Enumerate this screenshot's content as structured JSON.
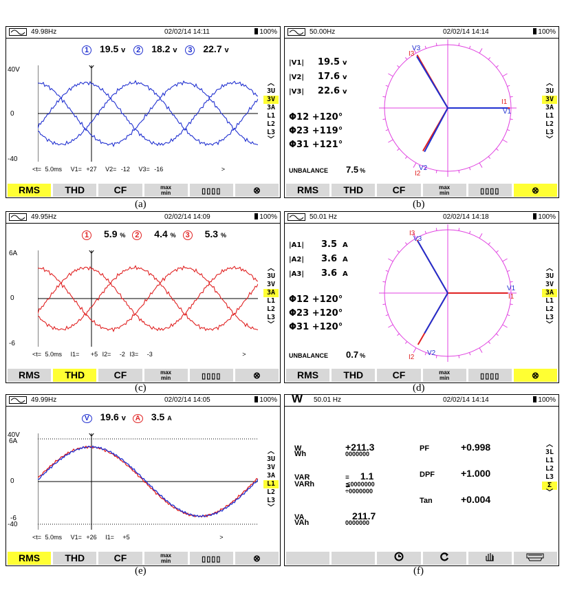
{
  "panels": {
    "a": {
      "freq": "49.98Hz",
      "datetime": "02/02/14  14:11",
      "battery": "100%",
      "readout": [
        {
          "n": "1",
          "val": "19.5",
          "unit": "v"
        },
        {
          "n": "2",
          "val": "18.2",
          "unit": "v"
        },
        {
          "n": "3",
          "val": "22.7",
          "unit": "v"
        }
      ],
      "ytop": "40V",
      "ymid": "0",
      "ybot": "-40",
      "cursor": {
        "t": "<t=",
        "time": "5.0ms",
        "c1": "V1=",
        "v1": "+27",
        "c2": "V2=",
        "v2": "-12",
        "c3": "V3=",
        "v3": "-16",
        "end": ">"
      },
      "menu": [
        "3U",
        "3V",
        "3A",
        "L1",
        "L2",
        "L3"
      ],
      "menu_selected": "3V",
      "caption": "(a)"
    },
    "b": {
      "freq": "50.00Hz",
      "datetime": "02/02/14  14:14",
      "battery": "100%",
      "mags": [
        {
          "label": "|V1|",
          "val": "19.5",
          "unit": "v"
        },
        {
          "label": "|V2|",
          "val": "17.6",
          "unit": "v"
        },
        {
          "label": "|V3|",
          "val": "22.6",
          "unit": "v"
        }
      ],
      "phases": [
        {
          "label": "Φ12",
          "val": "+120°"
        },
        {
          "label": "Φ23",
          "val": "+119°"
        },
        {
          "label": "Φ31",
          "val": "+121°"
        }
      ],
      "unbalance_label": "UNBALANCE",
      "unbalance_val": "7.5",
      "unbalance_unit": "%",
      "vec_labels": {
        "v1": "V1",
        "i1": "I1",
        "v2": "V2",
        "i2": "I2",
        "v3": "V3",
        "i3": "I3"
      },
      "menu": [
        "3U",
        "3V",
        "3A",
        "L1",
        "L2",
        "L3"
      ],
      "menu_selected": "3V",
      "caption": "(b)"
    },
    "c": {
      "freq": "49.95Hz",
      "datetime": "02/02/14  14:09",
      "battery": "100%",
      "readout": [
        {
          "n": "1",
          "val": "5.9",
          "unit": "%"
        },
        {
          "n": "2",
          "val": "4.4",
          "unit": "%"
        },
        {
          "n": "3",
          "val": "5.3",
          "unit": "%"
        }
      ],
      "ytop": "6A",
      "ymid": "0",
      "ybot": "-6",
      "cursor": {
        "t": "<t=",
        "time": "5.0ms",
        "c1": "I1=",
        "v1": "+5",
        "c2": "I2=",
        "v2": "-2",
        "c3": "I3=",
        "v3": "-3",
        "end": ">"
      },
      "menu": [
        "3U",
        "3V",
        "3A",
        "L1",
        "L2",
        "L3"
      ],
      "menu_selected": "3A",
      "caption": "(c)"
    },
    "d": {
      "freq": "50.01 Hz",
      "datetime": "02/02/14  14:18",
      "battery": "100%",
      "mags": [
        {
          "label": "|A1|",
          "val": "3.5",
          "unit": "A"
        },
        {
          "label": "|A2|",
          "val": "3.6",
          "unit": "A"
        },
        {
          "label": "|A3|",
          "val": "3.6",
          "unit": "A"
        }
      ],
      "phases": [
        {
          "label": "Φ12",
          "val": "+120°"
        },
        {
          "label": "Φ23",
          "val": "+120°"
        },
        {
          "label": "Φ31",
          "val": "+120°"
        }
      ],
      "unbalance_label": "UNBALANCE",
      "unbalance_val": "0.7",
      "unbalance_unit": "%",
      "vec_labels": {
        "v1": "V1",
        "i1": "I1",
        "v2": "V2",
        "i2": "I2",
        "v3": "V3",
        "i3": "I3"
      },
      "menu": [
        "3U",
        "3V",
        "3A",
        "L1",
        "L2",
        "L3"
      ],
      "menu_selected": "3A",
      "caption": "(d)"
    },
    "e": {
      "freq": "49.99Hz",
      "datetime": "02/02/14  14:05",
      "battery": "100%",
      "readout": [
        {
          "n": "V",
          "val": "19.6",
          "unit": "v"
        },
        {
          "n": "A",
          "val": "3.5",
          "unit": "A"
        }
      ],
      "ytop": "40V",
      "ytop2": "6A",
      "ymid": "0",
      "ybot": "-6",
      "ybot2": "-40",
      "cursor": {
        "t": "<t=",
        "time": "5.0ms",
        "c1": "V1=",
        "v1": "+26",
        "c2": "I1=",
        "v2": "+5",
        "end": ">"
      },
      "menu": [
        "3U",
        "3V",
        "3A",
        "L1",
        "L2",
        "L3"
      ],
      "menu_selected": "L1",
      "caption": "(e)"
    },
    "f": {
      "freq": "50.01 Hz",
      "datetime": "02/02/14  14:14",
      "battery": "100%",
      "w_label": "W",
      "w_val": "+211.3",
      "wh_label": "Wh",
      "wh_val": "0000000",
      "var_label": "VAR",
      "var_val": "1.1",
      "varh_label": "VARh",
      "varh_val1": "0000000",
      "varh_val2": "0000000",
      "va_label": "VA",
      "va_val": "211.7",
      "vah_label": "VAh",
      "vah_val": "0000000",
      "pf_label": "PF",
      "pf_val": "+0.998",
      "dpf_label": "DPF",
      "dpf_val": "+1.000",
      "tan_label": "Tan",
      "tan_val": "+0.004",
      "menu": [
        "3L",
        "L1",
        "L2",
        "L3",
        "Σ"
      ],
      "menu_selected": "Σ",
      "caption": "(f)"
    }
  },
  "toolbar": [
    "RMS",
    "THD",
    "CF",
    "max/min",
    "bars",
    "circle"
  ],
  "toolbar_active": {
    "a": "RMS",
    "b": "circle",
    "c": "THD",
    "d": "circle",
    "e": "RMS"
  },
  "colors": {
    "red": "#e02020",
    "blue": "#1f2fd0",
    "magenta": "#e040e0",
    "highlight": "#ffff33"
  }
}
